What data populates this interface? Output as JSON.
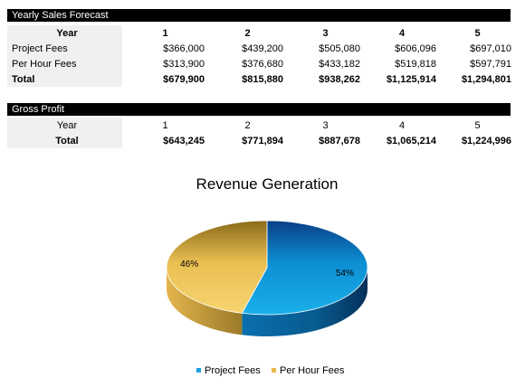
{
  "forecast": {
    "title": "Yearly Sales Forecast",
    "year_label": "Year",
    "years": [
      "1",
      "2",
      "3",
      "4",
      "5"
    ],
    "rows": [
      {
        "label": "Project Fees",
        "values": [
          "$366,000",
          "$439,200",
          "$505,080",
          "$606,096",
          "$697,010"
        ]
      },
      {
        "label": "Per Hour Fees",
        "values": [
          "$313,900",
          "$376,680",
          "$433,182",
          "$519,818",
          "$597,791"
        ]
      }
    ],
    "total": {
      "label": "Total",
      "values": [
        "$679,900",
        "$815,880",
        "$938,262",
        "$1,125,914",
        "$1,294,801"
      ]
    }
  },
  "gross_profit": {
    "title": "Gross Profit",
    "year_label": "Year",
    "years": [
      "1",
      "2",
      "3",
      "4",
      "5"
    ],
    "total": {
      "label": "Total",
      "values": [
        "$643,245",
        "$771,894",
        "$887,678",
        "$1,065,214",
        "$1,224,996"
      ]
    }
  },
  "chart_data": {
    "type": "pie",
    "title": "Revenue Generation",
    "categories": [
      "Project Fees",
      "Per Hour Fees"
    ],
    "values": [
      54,
      46
    ],
    "labels": [
      "54%",
      "46%"
    ],
    "colors": [
      "#1aa3e0",
      "#e8b64a"
    ],
    "three_d": true,
    "legend": "bottom"
  }
}
